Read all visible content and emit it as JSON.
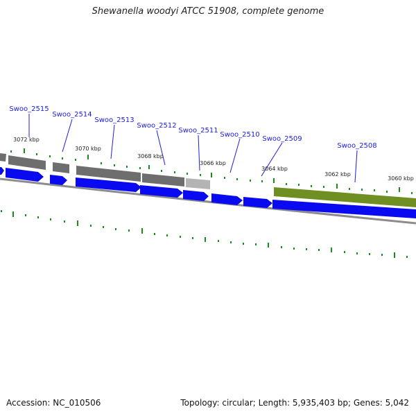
{
  "title": "Shewanella woodyi ATCC 51908, complete genome",
  "footer": {
    "accession": "Accession: NC_010506",
    "summary": "Topology: circular; Length: 5,935,403 bp; Genes: 5,042"
  },
  "genes": [
    "Swoo_2515",
    "Swoo_2514",
    "Swoo_2513",
    "Swoo_2512",
    "Swoo_2511",
    "Swoo_2510",
    "Swoo_2509",
    "Swoo_2508"
  ],
  "kbp_labels": [
    "3072 kbp",
    "3070 kbp",
    "3068 kbp",
    "3066 kbp",
    "3064 kbp",
    "3062 kbp",
    "3060 kbp"
  ],
  "colors": {
    "gene_label": "#1a1ae6",
    "cds_strand": "#0a0af0",
    "tick": "#1a8a1a",
    "backbone": "#8c8c8c",
    "highlight_feature": "#6f8f22",
    "gray_feature": "#6e6e6e"
  }
}
